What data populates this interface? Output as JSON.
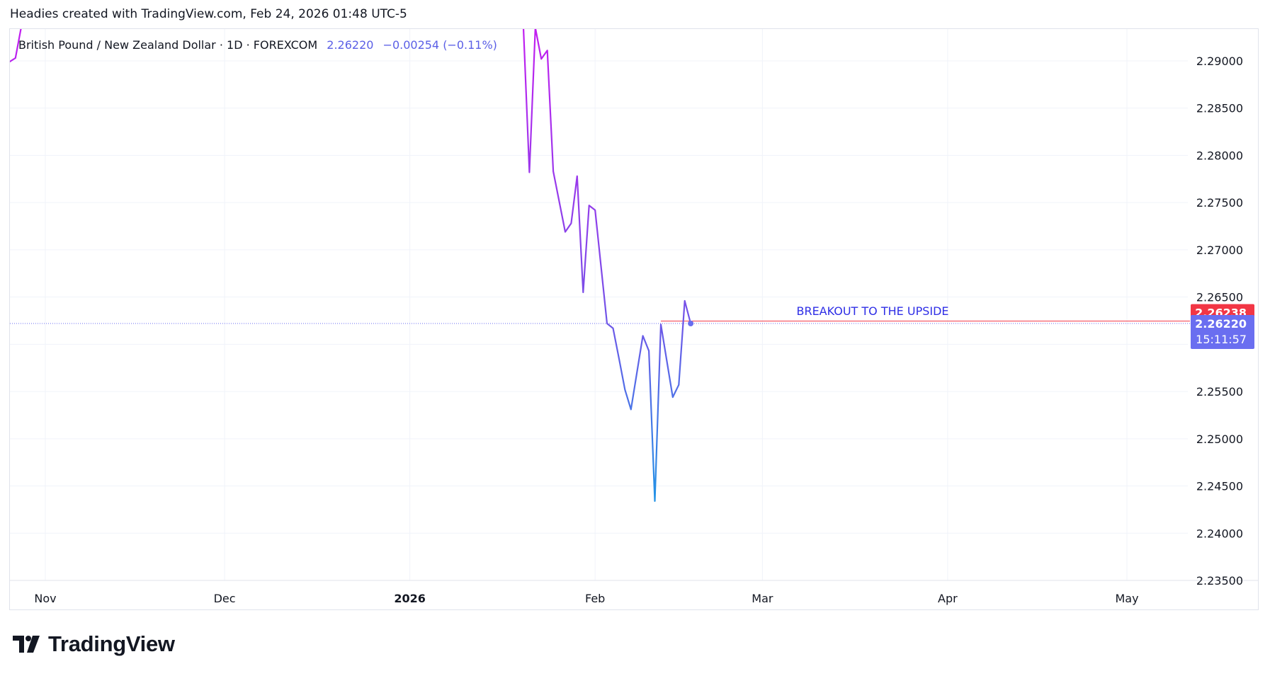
{
  "header": {
    "note": "Headies created with TradingView.com, Feb 24, 2026 01:48 UTC-5"
  },
  "legend": {
    "symbol": "British Pound / New Zealand Dollar · 1D · FOREXCOM",
    "price": "2.26220",
    "change": "−0.00254 (−0.11%)"
  },
  "annotation": {
    "text": "BREAKOUT TO THE UPSIDE",
    "color": "#2e2ee6"
  },
  "price_labels": {
    "red": {
      "value": "2.26238",
      "color": "#f23645"
    },
    "blue": {
      "value": "2.26220",
      "countdown": "15:11:57",
      "color": "#6a6ef0"
    }
  },
  "brand": {
    "name": "TradingView"
  },
  "colors": {
    "line_start": "#c21ef0",
    "line_mid": "#7b4de8",
    "line_end": "#1f96e6",
    "grid": "#f0f3fa"
  },
  "chart_data": {
    "type": "line",
    "title": "",
    "ylabel": "",
    "xlabel": "",
    "ylim": [
      2.235,
      2.2937
    ],
    "y_ticks": [
      "2.29000",
      "2.28500",
      "2.28000",
      "2.27500",
      "2.27000",
      "2.26500",
      "2.26000",
      "2.25500",
      "2.25000",
      "2.24500",
      "2.24000",
      "2.23500"
    ],
    "x_ticks": [
      {
        "label": "Nov",
        "date": "2025-11-01",
        "bold": false
      },
      {
        "label": "Dec",
        "date": "2025-12-01",
        "bold": false
      },
      {
        "label": "2026",
        "date": "2026-01-01",
        "bold": true
      },
      {
        "label": "Feb",
        "date": "2026-02-01",
        "bold": false
      },
      {
        "label": "Mar",
        "date": "2026-03-01",
        "bold": false
      },
      {
        "label": "Apr",
        "date": "2026-04-01",
        "bold": false
      },
      {
        "label": "May",
        "date": "2026-05-01",
        "bold": false
      }
    ],
    "xlim": [
      "2025-10-21",
      "2026-05-10"
    ],
    "series": [
      {
        "values": [
          [
            "2025-10-25",
            2.2895
          ],
          [
            "2025-10-27",
            2.2903
          ],
          [
            "2025-10-28",
            2.2937
          ],
          [
            "2026-01-20",
            2.2937
          ],
          [
            "2026-01-21",
            2.2782
          ],
          [
            "2026-01-22",
            2.2935
          ],
          [
            "2026-01-23",
            2.2902
          ],
          [
            "2026-01-24",
            2.2911
          ],
          [
            "2026-01-25",
            2.2783
          ],
          [
            "2026-01-27",
            2.2719
          ],
          [
            "2026-01-28",
            2.2728
          ],
          [
            "2026-01-29",
            2.2778
          ],
          [
            "2026-01-30",
            2.2655
          ],
          [
            "2026-01-31",
            2.2747
          ],
          [
            "2026-02-01",
            2.2742
          ],
          [
            "2026-02-03",
            2.2622
          ],
          [
            "2026-02-04",
            2.2617
          ],
          [
            "2026-02-05",
            2.2585
          ],
          [
            "2026-02-06",
            2.2552
          ],
          [
            "2026-02-07",
            2.2531
          ],
          [
            "2026-02-09",
            2.2609
          ],
          [
            "2026-02-10",
            2.2593
          ],
          [
            "2026-02-11",
            2.2434
          ],
          [
            "2026-02-12",
            2.2621
          ],
          [
            "2026-02-14",
            2.2544
          ],
          [
            "2026-02-15",
            2.2557
          ],
          [
            "2026-02-16",
            2.2646
          ],
          [
            "2026-02-17",
            2.2622
          ]
        ]
      }
    ],
    "last_price": 2.2622,
    "breakout_level": 2.26238,
    "breakout_start": "2026-02-12",
    "breakout_end": "2026-05-21",
    "grid": true,
    "legend": "none"
  }
}
